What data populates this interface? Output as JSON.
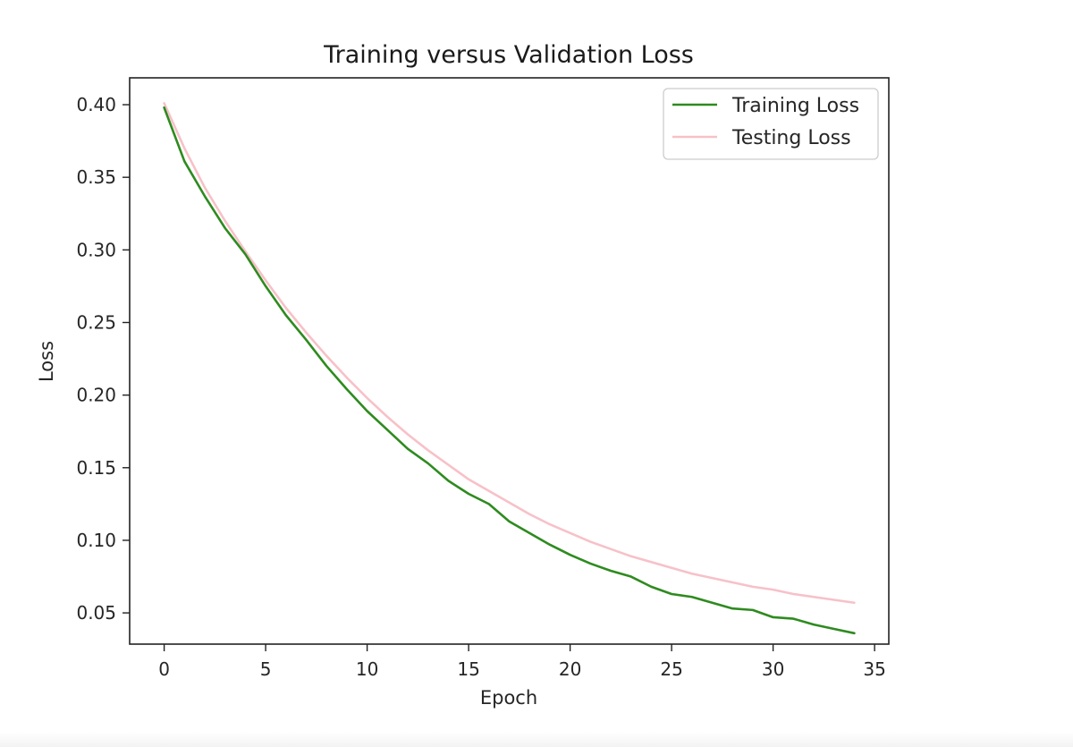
{
  "chart_data": {
    "type": "line",
    "title": "Training versus Validation Loss",
    "xlabel": "Epoch",
    "ylabel": "Loss",
    "xlim": [
      -1.7,
      35.7
    ],
    "ylim": [
      0.0285,
      0.4185
    ],
    "xticks": [
      0,
      5,
      10,
      15,
      20,
      25,
      30,
      35
    ],
    "xtick_labels": [
      "0",
      "5",
      "10",
      "15",
      "20",
      "25",
      "30",
      "35"
    ],
    "yticks": [
      0.05,
      0.1,
      0.15,
      0.2,
      0.25,
      0.3,
      0.35,
      0.4
    ],
    "ytick_labels": [
      "0.05",
      "0.10",
      "0.15",
      "0.20",
      "0.25",
      "0.30",
      "0.35",
      "0.40"
    ],
    "grid": false,
    "legend_position": "top-right",
    "x": [
      0,
      1,
      2,
      3,
      4,
      5,
      6,
      7,
      8,
      9,
      10,
      11,
      12,
      13,
      14,
      15,
      16,
      17,
      18,
      19,
      20,
      21,
      22,
      23,
      24,
      25,
      26,
      27,
      28,
      29,
      30,
      31,
      32,
      33,
      34
    ],
    "series": [
      {
        "name": "Training Loss",
        "color": "#2e8b1f",
        "values": [
          0.398,
          0.361,
          0.337,
          0.315,
          0.297,
          0.275,
          0.255,
          0.238,
          0.22,
          0.204,
          0.189,
          0.176,
          0.163,
          0.153,
          0.141,
          0.132,
          0.125,
          0.113,
          0.105,
          0.097,
          0.09,
          0.084,
          0.079,
          0.075,
          0.068,
          0.063,
          0.061,
          0.057,
          0.053,
          0.052,
          0.047,
          0.046,
          0.042,
          0.039,
          0.036
        ]
      },
      {
        "name": "Testing Loss",
        "color": "#f7c1c8",
        "values": [
          0.401,
          0.37,
          0.343,
          0.32,
          0.299,
          0.279,
          0.26,
          0.243,
          0.227,
          0.212,
          0.198,
          0.185,
          0.173,
          0.162,
          0.152,
          0.142,
          0.134,
          0.126,
          0.118,
          0.111,
          0.105,
          0.099,
          0.094,
          0.089,
          0.085,
          0.081,
          0.077,
          0.074,
          0.071,
          0.068,
          0.066,
          0.063,
          0.061,
          0.059,
          0.057
        ]
      }
    ]
  }
}
